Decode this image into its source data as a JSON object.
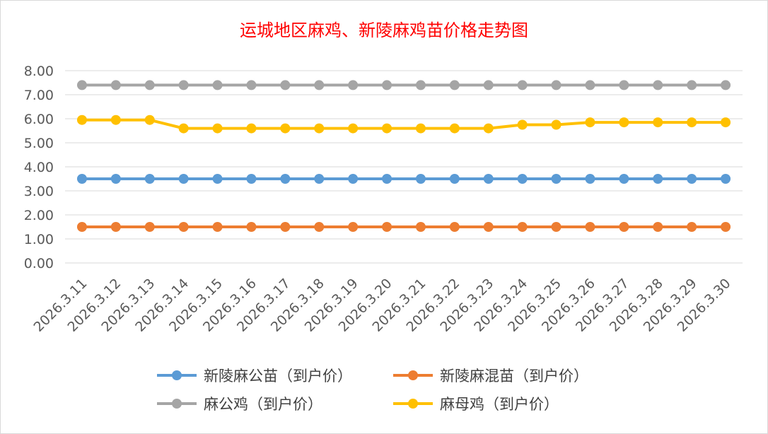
{
  "chart_data": {
    "type": "line",
    "title": "运城地区麻鸡、新陵麻鸡苗价格走势图",
    "xlabel": "",
    "ylabel": "",
    "ylim": [
      0,
      8
    ],
    "yticks": [
      "0.00",
      "1.00",
      "2.00",
      "3.00",
      "4.00",
      "5.00",
      "6.00",
      "7.00",
      "8.00"
    ],
    "grid": true,
    "legend_position": "bottom",
    "categories": [
      "2026.3.11",
      "2026.3.12",
      "2026.3.13",
      "2026.3.14",
      "2026.3.15",
      "2026.3.16",
      "2026.3.17",
      "2026.3.18",
      "2026.3.19",
      "2026.3.20",
      "2026.3.21",
      "2026.3.22",
      "2026.3.23",
      "2026.3.24",
      "2026.3.25",
      "2026.3.26",
      "2026.3.27",
      "2026.3.28",
      "2026.3.29",
      "2026.3.30"
    ],
    "series": [
      {
        "name": "新陵麻公苗（到户价）",
        "color": "#5b9bd5",
        "values": [
          3.5,
          3.5,
          3.5,
          3.5,
          3.5,
          3.5,
          3.5,
          3.5,
          3.5,
          3.5,
          3.5,
          3.5,
          3.5,
          3.5,
          3.5,
          3.5,
          3.5,
          3.5,
          3.5,
          3.5
        ]
      },
      {
        "name": "新陵麻混苗（到户价）",
        "color": "#ed7d31",
        "values": [
          1.5,
          1.5,
          1.5,
          1.5,
          1.5,
          1.5,
          1.5,
          1.5,
          1.5,
          1.5,
          1.5,
          1.5,
          1.5,
          1.5,
          1.5,
          1.5,
          1.5,
          1.5,
          1.5,
          1.5
        ]
      },
      {
        "name": "麻公鸡（到户价）",
        "color": "#a5a5a5",
        "values": [
          7.4,
          7.4,
          7.4,
          7.4,
          7.4,
          7.4,
          7.4,
          7.4,
          7.4,
          7.4,
          7.4,
          7.4,
          7.4,
          7.4,
          7.4,
          7.4,
          7.4,
          7.4,
          7.4,
          7.4
        ]
      },
      {
        "name": "麻母鸡（到户价）",
        "color": "#ffc000",
        "values": [
          5.95,
          5.95,
          5.95,
          5.6,
          5.6,
          5.6,
          5.6,
          5.6,
          5.6,
          5.6,
          5.6,
          5.6,
          5.6,
          5.75,
          5.75,
          5.85,
          5.85,
          5.85,
          5.85,
          5.85
        ]
      }
    ]
  }
}
